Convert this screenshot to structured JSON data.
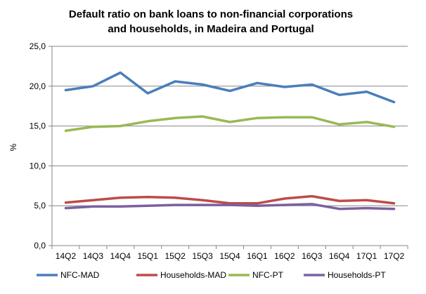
{
  "chart_data": {
    "type": "line",
    "title": [
      "Default ratio on bank loans to non-financial  corporations",
      "and households,  in Madeira and Portugal"
    ],
    "xlabel": "",
    "ylabel": "%",
    "ylim": [
      0,
      25
    ],
    "yticks": [
      "0,0",
      "5,0",
      "10,0",
      "15,0",
      "20,0",
      "25,0"
    ],
    "categories": [
      "14Q2",
      "14Q3",
      "14Q4",
      "15Q1",
      "15Q2",
      "15Q3",
      "15Q4",
      "16Q1",
      "16Q2",
      "16Q3",
      "16Q4",
      "17Q1",
      "17Q2"
    ],
    "grid": true,
    "legend_position": "bottom",
    "series": [
      {
        "name": "NFC-MAD",
        "color": "#4a7ebb",
        "values": [
          19.5,
          20.0,
          21.7,
          19.1,
          20.6,
          20.2,
          19.4,
          20.4,
          19.9,
          20.2,
          18.9,
          19.3,
          18.0
        ]
      },
      {
        "name": "Households-MAD",
        "color": "#be4b48",
        "values": [
          5.4,
          5.7,
          6.0,
          6.1,
          6.0,
          5.7,
          5.3,
          5.3,
          5.9,
          6.2,
          5.6,
          5.7,
          5.3
        ]
      },
      {
        "name": "NFC-PT",
        "color": "#98b954",
        "values": [
          14.4,
          14.9,
          15.0,
          15.6,
          16.0,
          16.2,
          15.5,
          16.0,
          16.1,
          16.1,
          15.2,
          15.5,
          14.9
        ]
      },
      {
        "name": "Households-PT",
        "color": "#7d60a0",
        "values": [
          4.7,
          4.9,
          4.9,
          5.0,
          5.1,
          5.1,
          5.1,
          5.0,
          5.1,
          5.2,
          4.6,
          4.7,
          4.6
        ]
      }
    ]
  }
}
